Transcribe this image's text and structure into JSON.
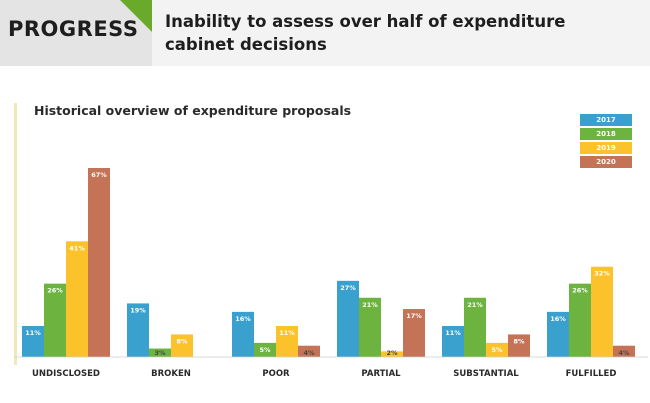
{
  "header": {
    "badge": "PROGRESS",
    "title": "Inability to assess over half of expenditure cabinet decisions"
  },
  "colors": {
    "header_bg": "#f3f3f3",
    "badge_bg": "#e4e4e4",
    "accent_green": "#6aaa2a"
  },
  "chart_data": {
    "type": "bar",
    "title": "Historical overview of expenditure proposals",
    "xlabel": "",
    "ylabel": "",
    "ylim": [
      0,
      67
    ],
    "grid": false,
    "legend_position": "top-right",
    "categories": [
      "UNDISCLOSED",
      "BROKEN",
      "POOR",
      "PARTIAL",
      "SUBSTANTIAL",
      "FULFILLED"
    ],
    "series": [
      {
        "name": "2017",
        "color": "#3aa1cf",
        "values": [
          11,
          19,
          16,
          27,
          11,
          16
        ],
        "labels": [
          "11%",
          "19%",
          "16%",
          "27%",
          "11%",
          "16%"
        ]
      },
      {
        "name": "2018",
        "color": "#6cb33f",
        "values": [
          26,
          3,
          5,
          21,
          21,
          26
        ],
        "labels": [
          "26%",
          "3%",
          "5%",
          "21%",
          "21%",
          "26%"
        ]
      },
      {
        "name": "2019",
        "color": "#fbc22c",
        "values": [
          41,
          8,
          11,
          2,
          5,
          32
        ],
        "labels": [
          "41%",
          "8%",
          "11%",
          "2%",
          "5%",
          "32%"
        ]
      },
      {
        "name": "2020",
        "color": "#c47357",
        "values": [
          67,
          0,
          4,
          17,
          8,
          4
        ],
        "labels": [
          "67%",
          "",
          "4%",
          "17%",
          "8%",
          "4%"
        ]
      }
    ]
  }
}
